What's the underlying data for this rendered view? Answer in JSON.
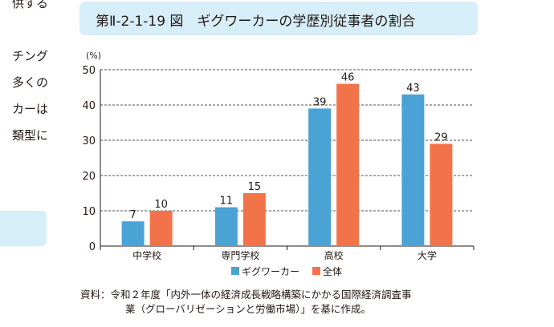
{
  "side": {
    "lines": [
      "供する",
      "チング",
      "多くの",
      "カーは",
      "類型に"
    ]
  },
  "title": "第Ⅱ-2-1-19 図　ギグワーカーの学歴別従事者の割合",
  "chart_data": {
    "type": "bar",
    "unit_label": "(%)",
    "categories": [
      "中学校",
      "専門学校",
      "高校",
      "大学"
    ],
    "series": [
      {
        "name": "ギグワーカー",
        "values": [
          7,
          11,
          39,
          43
        ],
        "color": "#4ba3d5"
      },
      {
        "name": "全体",
        "values": [
          10,
          15,
          46,
          29
        ],
        "color": "#f2734a"
      }
    ],
    "ylim": [
      0,
      50
    ],
    "yticks": [
      0,
      10,
      20,
      30,
      40,
      50
    ],
    "grid": "dashed horizontal",
    "legend": "bottom-center"
  },
  "source": {
    "line1": "資料：令和２年度「内外一体の経済成長戦略構築にかかる国際経済調査事",
    "line2": "業（グローバリゼーションと労働市場）」を基に作成。"
  }
}
